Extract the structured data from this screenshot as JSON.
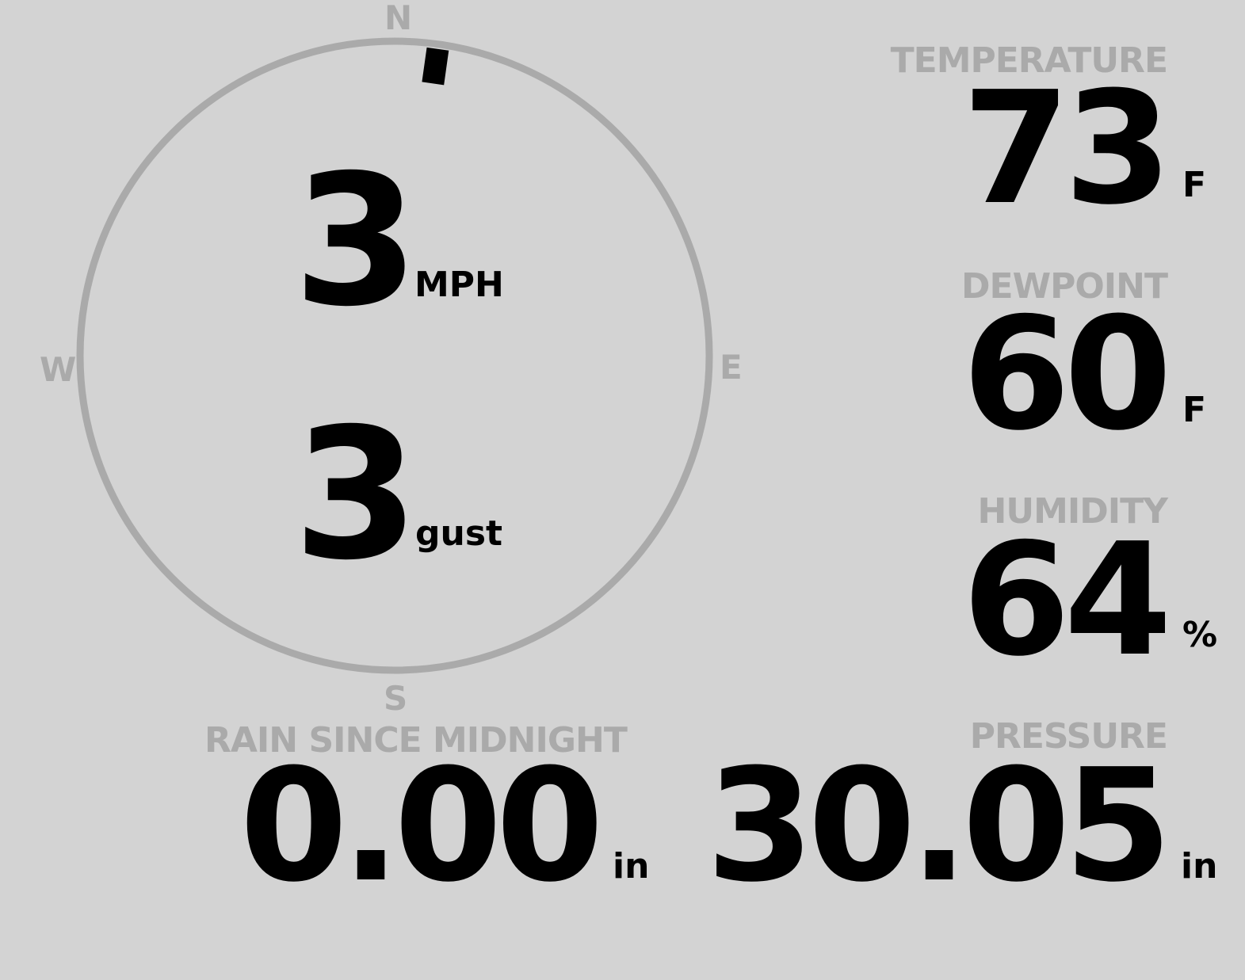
{
  "wind": {
    "speed": "3",
    "speed_unit": "MPH",
    "gust": "3",
    "gust_unit": "gust",
    "direction_deg": 8,
    "compass": {
      "n": "N",
      "e": "E",
      "s": "S",
      "w": "W"
    }
  },
  "temperature": {
    "label": "TEMPERATURE",
    "value": "73",
    "unit": "F"
  },
  "dewpoint": {
    "label": "DEWPOINT",
    "value": "60",
    "unit": "F"
  },
  "humidity": {
    "label": "HUMIDITY",
    "value": "64",
    "unit": "%"
  },
  "rain": {
    "label": "RAIN SINCE MIDNIGHT",
    "value": "0.00",
    "unit": "in"
  },
  "pressure": {
    "label": "PRESSURE",
    "value": "30.05",
    "unit": "in"
  },
  "colors": {
    "background": "#d3d3d3",
    "muted": "#aaaaaa",
    "value": "#000000"
  }
}
